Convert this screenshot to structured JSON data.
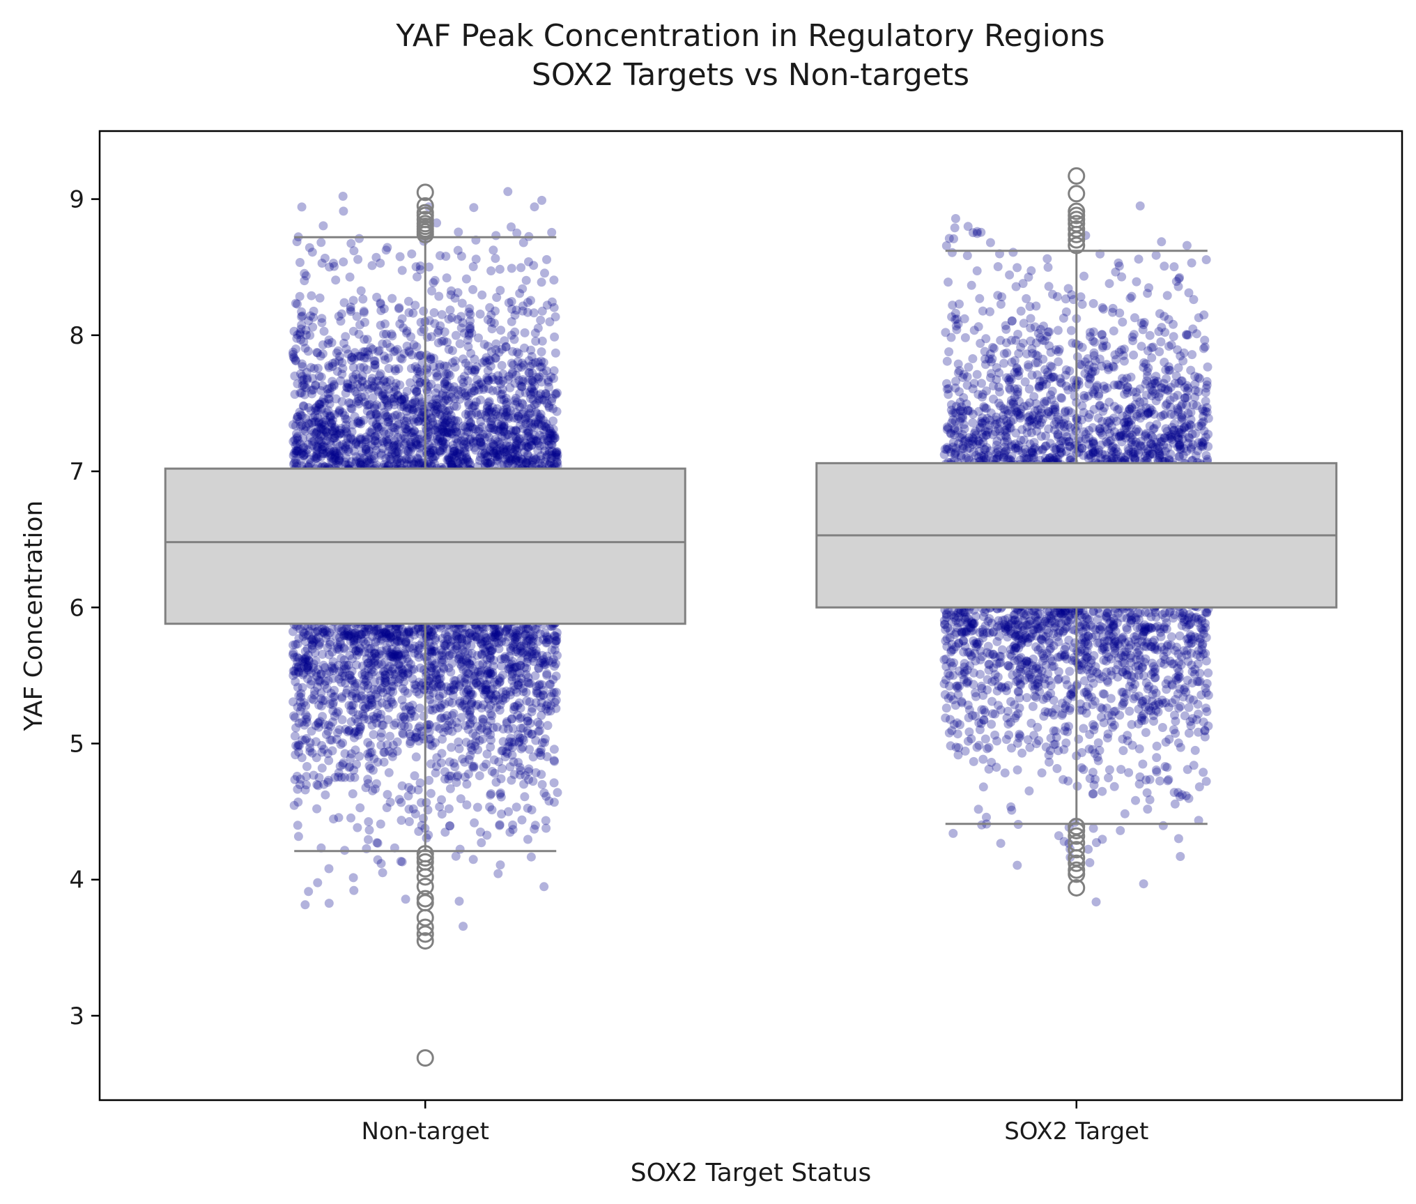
{
  "chart_data": {
    "type": "box",
    "title": "YAF Peak Concentration in Regulatory Regions",
    "subtitle": "SOX2 Targets vs Non-targets",
    "xlabel": "SOX2 Target Status",
    "ylabel": "YAF Concentration",
    "categories": [
      "Non-target",
      "SOX2 Target"
    ],
    "ylim": [
      2.38,
      9.5
    ],
    "yticks": [
      3,
      4,
      5,
      6,
      7,
      8,
      9
    ],
    "grid": false,
    "colors": {
      "box_fill": "#d3d3d3",
      "box_edge": "#808080",
      "points": "#00008b"
    },
    "boxes": [
      {
        "category": "Non-target",
        "q1": 5.88,
        "median": 6.48,
        "q3": 7.02,
        "whisker_low": 4.21,
        "whisker_high": 8.72,
        "outliers": [
          9.05,
          8.95,
          8.9,
          8.88,
          8.85,
          8.82,
          8.8,
          8.78,
          8.76,
          8.74,
          4.19,
          4.16,
          4.13,
          4.08,
          4.02,
          3.95,
          3.86,
          3.83,
          3.72,
          3.65,
          3.6,
          3.55,
          2.69
        ]
      },
      {
        "category": "SOX2 Target",
        "q1": 6.0,
        "median": 6.53,
        "q3": 7.06,
        "whisker_low": 4.41,
        "whisker_high": 8.62,
        "outliers": [
          9.17,
          9.04,
          8.91,
          8.88,
          8.85,
          8.82,
          8.78,
          8.74,
          8.7,
          8.66,
          4.39,
          4.36,
          4.32,
          4.27,
          4.22,
          4.16,
          4.12,
          4.07,
          4.04,
          3.94
        ]
      }
    ],
    "points": {
      "style": "jittered strip",
      "alpha": 0.3,
      "n_per_group": [
        6500,
        4500
      ]
    }
  }
}
